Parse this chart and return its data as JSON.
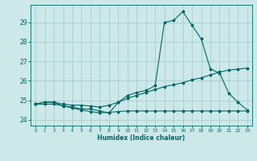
{
  "title": "",
  "xlabel": "Humidex (Indice chaleur)",
  "xlim": [
    -0.5,
    23.5
  ],
  "ylim": [
    23.7,
    29.9
  ],
  "yticks": [
    24,
    25,
    26,
    27,
    28,
    29
  ],
  "xticks": [
    0,
    1,
    2,
    3,
    4,
    5,
    6,
    7,
    8,
    9,
    10,
    11,
    12,
    13,
    14,
    15,
    16,
    17,
    18,
    19,
    20,
    21,
    22,
    23
  ],
  "bg_color": "#cce8e8",
  "grid_color": "#aacccc",
  "line_color": "#006666",
  "series1": [
    24.8,
    24.9,
    24.9,
    24.7,
    24.65,
    24.55,
    24.55,
    24.45,
    24.35,
    24.9,
    25.25,
    25.4,
    25.5,
    25.75,
    29.0,
    29.1,
    29.55,
    28.85,
    28.15,
    26.6,
    26.4,
    25.35,
    24.9,
    24.5
  ],
  "series2": [
    24.8,
    24.9,
    24.9,
    24.8,
    24.75,
    24.75,
    24.7,
    24.65,
    24.75,
    24.9,
    25.1,
    25.25,
    25.4,
    25.55,
    25.7,
    25.8,
    25.9,
    26.05,
    26.15,
    26.3,
    26.45,
    26.55,
    26.6,
    26.65
  ],
  "series3": [
    24.8,
    24.8,
    24.8,
    24.72,
    24.6,
    24.5,
    24.42,
    24.35,
    24.38,
    24.42,
    24.45,
    24.45,
    24.45,
    24.45,
    24.45,
    24.45,
    24.45,
    24.45,
    24.45,
    24.45,
    24.45,
    24.45,
    24.45,
    24.45
  ]
}
